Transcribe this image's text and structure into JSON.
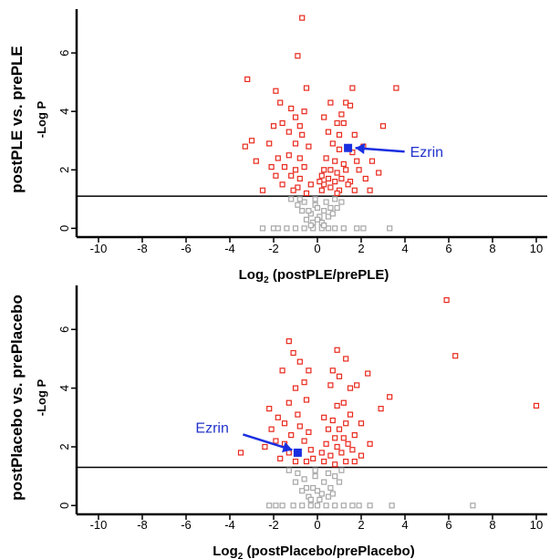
{
  "chart_data": [
    {
      "type": "scatter",
      "title": "",
      "row_label": "postPLE vs. prePLE",
      "ylabel": "-Log P",
      "xlabel_prefix": "Log",
      "xlabel_sub": "2",
      "xlabel_rest": " (postPLE/prePLE)",
      "xlim": [
        -11,
        10.5
      ],
      "ylim": [
        -0.3,
        7.5
      ],
      "x_ticks": [
        -10,
        -8,
        -6,
        -4,
        -2,
        0,
        2,
        4,
        6,
        8,
        10
      ],
      "y_ticks": [
        0,
        2,
        4,
        6
      ],
      "threshold": 1.1,
      "colors": {
        "significant": "#e8281c",
        "nonsignificant": "#a6a6a6",
        "highlight": "#1a2fe0"
      },
      "annotation": {
        "label": "Ezrin",
        "x": 1.4,
        "y": 2.75
      },
      "series": [
        {
          "significance": "significant",
          "points": [
            [
              -0.7,
              7.2
            ],
            [
              -0.9,
              5.9
            ],
            [
              -3.2,
              5.1
            ],
            [
              3.6,
              4.8
            ],
            [
              -1.9,
              4.7
            ],
            [
              -0.5,
              4.8
            ],
            [
              1.6,
              4.8
            ],
            [
              -1.7,
              4.3
            ],
            [
              -1.2,
              4.1
            ],
            [
              1.3,
              4.3
            ],
            [
              1.5,
              4.2
            ],
            [
              0.6,
              4.3
            ],
            [
              -0.6,
              4.0
            ],
            [
              -1.0,
              3.8
            ],
            [
              1.1,
              3.9
            ],
            [
              0.3,
              3.8
            ],
            [
              -2.0,
              3.5
            ],
            [
              -1.6,
              3.6
            ],
            [
              -0.8,
              3.5
            ],
            [
              0.9,
              3.6
            ],
            [
              1.2,
              3.6
            ],
            [
              3.0,
              3.5
            ],
            [
              -1.3,
              3.3
            ],
            [
              -0.7,
              3.2
            ],
            [
              0.5,
              3.3
            ],
            [
              1.0,
              3.2
            ],
            [
              1.7,
              3.2
            ],
            [
              -3.0,
              3.0
            ],
            [
              -2.2,
              2.9
            ],
            [
              -3.3,
              2.8
            ],
            [
              -1.0,
              2.9
            ],
            [
              -0.4,
              2.8
            ],
            [
              0.7,
              2.9
            ],
            [
              1.0,
              2.7
            ],
            [
              1.6,
              2.6
            ],
            [
              2.1,
              2.8
            ],
            [
              -1.8,
              2.4
            ],
            [
              -1.3,
              2.5
            ],
            [
              -0.8,
              2.4
            ],
            [
              0.4,
              2.4
            ],
            [
              0.8,
              2.3
            ],
            [
              1.2,
              2.2
            ],
            [
              1.8,
              2.3
            ],
            [
              2.5,
              2.3
            ],
            [
              -2.1,
              2.1
            ],
            [
              -1.5,
              2.1
            ],
            [
              -1.0,
              2.0
            ],
            [
              -0.6,
              2.1
            ],
            [
              0.3,
              2.0
            ],
            [
              0.6,
              2.0
            ],
            [
              0.9,
              1.9
            ],
            [
              1.3,
              2.0
            ],
            [
              1.9,
              2.0
            ],
            [
              -1.9,
              1.8
            ],
            [
              -1.2,
              1.8
            ],
            [
              -0.8,
              1.7
            ],
            [
              0.2,
              1.8
            ],
            [
              0.5,
              1.7
            ],
            [
              0.8,
              1.6
            ],
            [
              1.1,
              1.7
            ],
            [
              1.5,
              1.6
            ],
            [
              2.2,
              1.7
            ],
            [
              -1.6,
              1.5
            ],
            [
              -0.9,
              1.4
            ],
            [
              0.3,
              1.5
            ],
            [
              0.6,
              1.4
            ],
            [
              1.0,
              1.3
            ],
            [
              1.4,
              1.5
            ],
            [
              -1.1,
              1.3
            ],
            [
              0.2,
              1.3
            ],
            [
              0.9,
              1.2
            ],
            [
              -2.5,
              1.3
            ],
            [
              2.4,
              1.3
            ],
            [
              -0.3,
              1.5
            ],
            [
              -0.5,
              1.2
            ],
            [
              0.1,
              1.6
            ],
            [
              1.7,
              1.3
            ],
            [
              2.8,
              1.9
            ],
            [
              -2.8,
              2.3
            ]
          ]
        },
        {
          "significance": "nonsignificant",
          "points": [
            [
              -2.5,
              0.0
            ],
            [
              -2.0,
              0.0
            ],
            [
              -1.4,
              0.0
            ],
            [
              -1.0,
              0.0
            ],
            [
              -0.6,
              0.0
            ],
            [
              0.8,
              0.0
            ],
            [
              1.2,
              0.0
            ],
            [
              1.8,
              0.0
            ],
            [
              2.1,
              0.0
            ],
            [
              3.3,
              0.0
            ],
            [
              -1.8,
              0.0
            ],
            [
              0.5,
              0.0
            ],
            [
              -0.2,
              0.0
            ],
            [
              0.2,
              0.0
            ],
            [
              -0.5,
              0.3
            ],
            [
              -0.3,
              0.5
            ],
            [
              0.1,
              0.4
            ],
            [
              0.3,
              0.6
            ],
            [
              -0.1,
              0.8
            ],
            [
              0.4,
              0.9
            ],
            [
              -0.6,
              0.9
            ],
            [
              0.6,
              0.7
            ],
            [
              -0.2,
              0.2
            ],
            [
              0.2,
              0.2
            ],
            [
              -0.4,
              0.6
            ],
            [
              0.0,
              0.3
            ],
            [
              -0.8,
              1.0
            ],
            [
              0.8,
              1.0
            ],
            [
              -1.2,
              1.0
            ],
            [
              1.1,
              0.9
            ],
            [
              -0.1,
              1.0
            ],
            [
              0.5,
              0.4
            ],
            [
              -0.7,
              0.6
            ],
            [
              0.7,
              0.5
            ],
            [
              0.0,
              0.7
            ],
            [
              -0.3,
              0.1
            ],
            [
              0.3,
              0.1
            ],
            [
              -0.9,
              0.8
            ],
            [
              0.9,
              0.7
            ]
          ]
        },
        {
          "significance": "highlight",
          "label": "Ezrin",
          "points": [
            [
              1.4,
              2.75
            ]
          ]
        }
      ]
    },
    {
      "type": "scatter",
      "title": "",
      "row_label": "postPlacebo vs. prePlacebo",
      "ylabel": "-Log P",
      "xlabel_prefix": "Log",
      "xlabel_sub": "2",
      "xlabel_rest": " (postPlacebo/prePlacebo)",
      "xlim": [
        -11,
        10.5
      ],
      "ylim": [
        -0.3,
        7.5
      ],
      "x_ticks": [
        -10,
        -8,
        -6,
        -4,
        -2,
        0,
        2,
        4,
        6,
        8,
        10
      ],
      "y_ticks": [
        0,
        2,
        4,
        6
      ],
      "threshold": 1.3,
      "colors": {
        "significant": "#e8281c",
        "nonsignificant": "#a6a6a6",
        "highlight": "#1a2fe0"
      },
      "annotation": {
        "label": "Ezrin",
        "x": -0.9,
        "y": 1.8
      },
      "series": [
        {
          "significance": "significant",
          "points": [
            [
              5.9,
              7.0
            ],
            [
              -1.3,
              5.6
            ],
            [
              0.9,
              5.3
            ],
            [
              6.3,
              5.1
            ],
            [
              -1.1,
              5.2
            ],
            [
              -0.8,
              4.9
            ],
            [
              1.3,
              5.0
            ],
            [
              -0.4,
              4.6
            ],
            [
              0.7,
              4.6
            ],
            [
              -1.6,
              4.6
            ],
            [
              2.3,
              4.5
            ],
            [
              1.0,
              4.4
            ],
            [
              1.8,
              4.1
            ],
            [
              -0.6,
              4.2
            ],
            [
              -1.0,
              4.0
            ],
            [
              0.6,
              4.1
            ],
            [
              1.5,
              4.0
            ],
            [
              10.0,
              3.4
            ],
            [
              3.3,
              3.7
            ],
            [
              -2.2,
              3.3
            ],
            [
              -1.3,
              3.5
            ],
            [
              -0.5,
              3.6
            ],
            [
              0.9,
              3.4
            ],
            [
              1.2,
              3.5
            ],
            [
              2.9,
              3.3
            ],
            [
              -1.8,
              3.0
            ],
            [
              -0.9,
              3.1
            ],
            [
              0.3,
              3.0
            ],
            [
              0.7,
              2.9
            ],
            [
              1.5,
              3.1
            ],
            [
              -1.5,
              2.8
            ],
            [
              -0.8,
              2.7
            ],
            [
              0.5,
              2.6
            ],
            [
              1.0,
              2.6
            ],
            [
              1.3,
              2.8
            ],
            [
              2.0,
              2.8
            ],
            [
              -2.1,
              2.6
            ],
            [
              -1.2,
              2.4
            ],
            [
              -0.4,
              2.5
            ],
            [
              0.8,
              2.3
            ],
            [
              1.2,
              2.3
            ],
            [
              1.7,
              2.4
            ],
            [
              -1.9,
              2.2
            ],
            [
              -1.5,
              2.1
            ],
            [
              -0.6,
              2.2
            ],
            [
              0.4,
              2.1
            ],
            [
              0.9,
              2.0
            ],
            [
              1.4,
              2.1
            ],
            [
              2.4,
              2.1
            ],
            [
              -1.3,
              1.8
            ],
            [
              -0.3,
              1.9
            ],
            [
              0.2,
              1.8
            ],
            [
              0.6,
              1.7
            ],
            [
              1.1,
              1.8
            ],
            [
              1.6,
              1.9
            ],
            [
              -3.5,
              1.8
            ],
            [
              -1.7,
              1.6
            ],
            [
              -1.0,
              1.5
            ],
            [
              -0.5,
              1.5
            ],
            [
              0.3,
              1.5
            ],
            [
              0.8,
              1.4
            ],
            [
              1.3,
              1.5
            ],
            [
              1.7,
              1.5
            ],
            [
              2.0,
              1.7
            ],
            [
              -0.2,
              1.6
            ],
            [
              -2.4,
              2.0
            ]
          ]
        },
        {
          "significance": "nonsignificant",
          "points": [
            [
              -2.2,
              0.0
            ],
            [
              -1.6,
              0.0
            ],
            [
              -1.1,
              0.0
            ],
            [
              -0.7,
              0.0
            ],
            [
              -0.3,
              0.0
            ],
            [
              0.4,
              0.0
            ],
            [
              0.8,
              0.0
            ],
            [
              1.2,
              0.0
            ],
            [
              1.6,
              0.0
            ],
            [
              1.9,
              0.0
            ],
            [
              2.4,
              0.0
            ],
            [
              3.4,
              0.0
            ],
            [
              7.1,
              0.0
            ],
            [
              -1.9,
              0.0
            ],
            [
              0.0,
              0.0
            ],
            [
              -0.4,
              0.3
            ],
            [
              -0.2,
              0.6
            ],
            [
              0.2,
              0.4
            ],
            [
              0.3,
              0.8
            ],
            [
              -0.1,
              1.0
            ],
            [
              0.5,
              1.1
            ],
            [
              -0.6,
              0.9
            ],
            [
              0.6,
              0.6
            ],
            [
              -0.3,
              0.2
            ],
            [
              0.1,
              0.2
            ],
            [
              -0.5,
              0.6
            ],
            [
              0.0,
              0.5
            ],
            [
              -0.9,
              1.1
            ],
            [
              0.8,
              1.0
            ],
            [
              -1.3,
              1.2
            ],
            [
              1.1,
              1.2
            ],
            [
              -0.1,
              1.2
            ],
            [
              0.5,
              0.3
            ],
            [
              -0.7,
              0.5
            ],
            [
              0.7,
              0.4
            ],
            [
              -1.0,
              0.8
            ],
            [
              1.0,
              0.8
            ]
          ]
        },
        {
          "significance": "highlight",
          "label": "Ezrin",
          "points": [
            [
              -0.9,
              1.8
            ]
          ]
        }
      ]
    }
  ]
}
